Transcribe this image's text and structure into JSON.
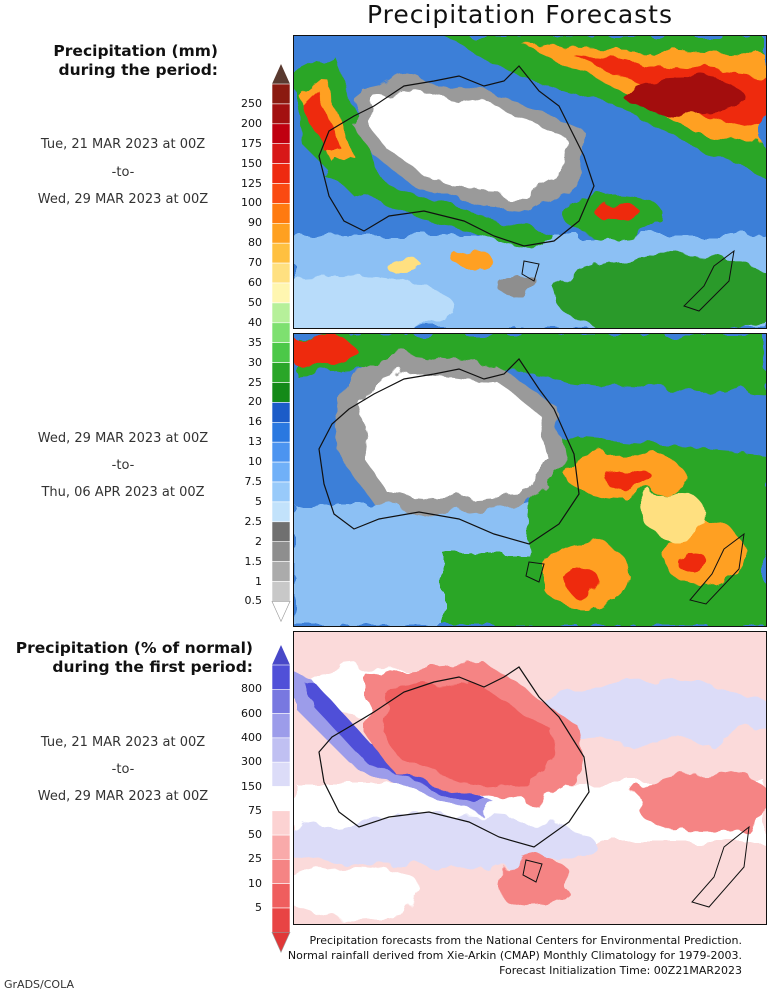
{
  "title": "Precipitation Forecasts",
  "precip": {
    "header_line1": "Precipitation (mm)",
    "header_line2": "during the period:",
    "period1": {
      "start": "Tue, 21 MAR 2023 at 00Z",
      "sep": "-to-",
      "end": "Wed, 29 MAR 2023 at 00Z"
    },
    "period2": {
      "start": "Wed, 29 MAR 2023 at 00Z",
      "sep": "-to-",
      "end": "Thu, 06 APR 2023 at 00Z"
    },
    "ticks": [
      "250",
      "200",
      "175",
      "150",
      "125",
      "100",
      "90",
      "80",
      "70",
      "60",
      "50",
      "40",
      "35",
      "30",
      "25",
      "20",
      "16",
      "13",
      "10",
      "7.5",
      "5",
      "2.5",
      "2",
      "1.5",
      "1",
      "0.5"
    ],
    "colors": [
      "#8b1a10",
      "#a31010",
      "#c00010",
      "#d81818",
      "#ee2a10",
      "#fa4a12",
      "#ff7a10",
      "#ffa020",
      "#ffc040",
      "#ffe080",
      "#fff6b0",
      "#b6f09a",
      "#7ee070",
      "#4cc848",
      "#2aa628",
      "#148a18",
      "#1c5cc8",
      "#2a78e0",
      "#4c94f0",
      "#70b0f8",
      "#98cafa",
      "#c2e2fb",
      "#707070",
      "#8e8e8e",
      "#ababab",
      "#c8c8c8"
    ],
    "top_color": "#5a3a30"
  },
  "anomaly": {
    "header_line1": "Precipitation (% of normal)",
    "header_line2": "during the first period:",
    "period": {
      "start": "Tue, 21 MAR 2023 at 00Z",
      "sep": "-to-",
      "end": "Wed, 29 MAR 2023 at 00Z"
    },
    "ticks": [
      "800",
      "600",
      "400",
      "300",
      "150",
      "75",
      "50",
      "25",
      "10",
      "5"
    ],
    "colors": [
      "#5050d8",
      "#7878e0",
      "#9c9cea",
      "#c0c0f2",
      "#dcdcf8",
      "#ffffff",
      "#fcd2d2",
      "#f9aaaa",
      "#f58484",
      "#ef5e5e",
      "#e84444"
    ],
    "top_color": "#4848c8",
    "bottom_color": "#e03838"
  },
  "footer": {
    "line1": "Precipitation forecasts from the National Centers for Environmental Prediction.",
    "line2": "Normal rainfall derived from Xie-Arkin (CMAP) Monthly Climatology for 1979-2003.",
    "line3": "Forecast Initialization Time: 00Z21MAR2023"
  },
  "credit": "GrADS/COLA"
}
